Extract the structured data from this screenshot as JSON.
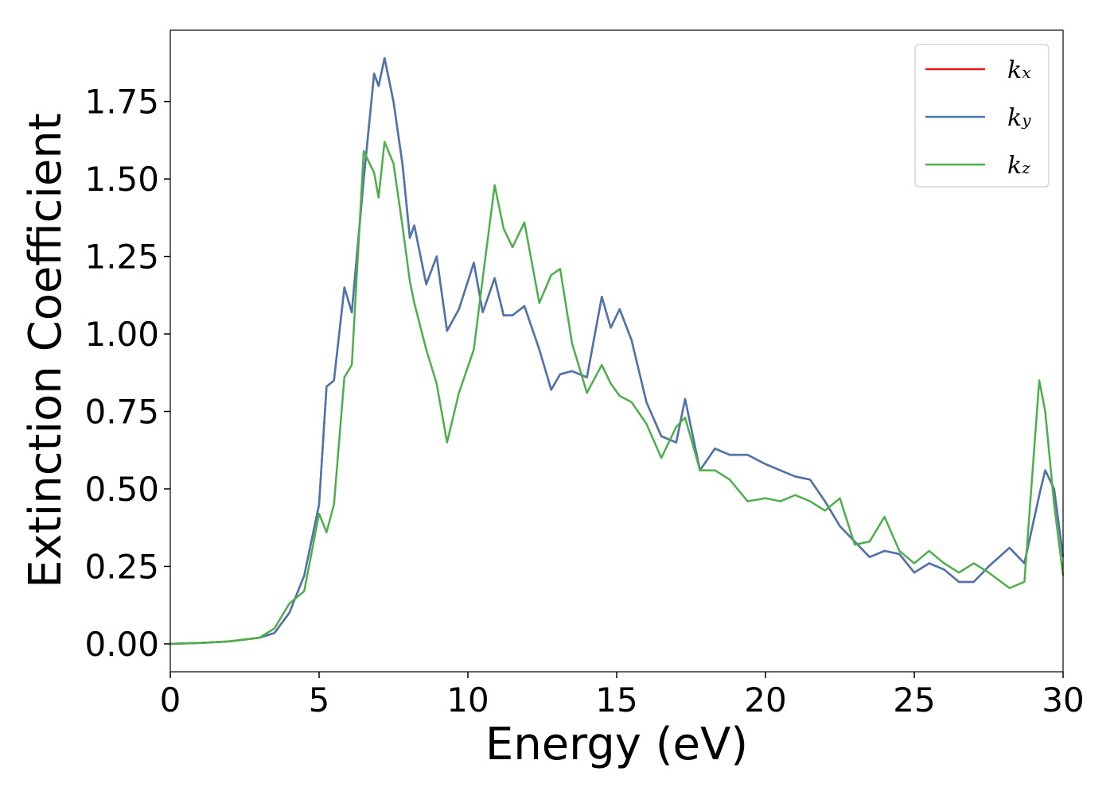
{
  "chart_data": {
    "type": "line",
    "x_label": "Energy (eV)",
    "y_label": "Extinction Coefficient",
    "x": [
      0,
      1,
      2,
      3,
      3.5,
      4,
      4.5,
      5,
      5.25,
      5.5,
      5.85,
      6.1,
      6.5,
      6.85,
      7,
      7.2,
      7.5,
      7.8,
      8.05,
      8.2,
      8.6,
      8.95,
      9.3,
      9.7,
      10.2,
      10.5,
      10.9,
      11.2,
      11.5,
      11.9,
      12.4,
      12.8,
      13.1,
      13.5,
      14,
      14.5,
      14.8,
      15.1,
      15.5,
      16,
      16.5,
      17,
      17.3,
      17.8,
      18.3,
      18.8,
      19.4,
      20,
      20.5,
      21,
      21.5,
      22,
      22.5,
      23,
      23.5,
      24,
      24.5,
      25,
      25.5,
      26,
      26.5,
      27,
      27.5,
      28.2,
      28.7,
      29.2,
      29.4,
      29.7,
      30
    ],
    "series": [
      {
        "name": "kx",
        "color": "#e41a1c",
        "values": [
          0,
          0.003,
          0.008,
          0.02,
          0.035,
          0.1,
          0.22,
          0.45,
          0.83,
          0.85,
          1.15,
          1.07,
          1.5,
          1.84,
          1.8,
          1.89,
          1.75,
          1.55,
          1.31,
          1.35,
          1.16,
          1.25,
          1.01,
          1.08,
          1.23,
          1.07,
          1.18,
          1.06,
          1.06,
          1.09,
          0.95,
          0.82,
          0.87,
          0.88,
          0.86,
          1.12,
          1.02,
          1.08,
          0.98,
          0.78,
          0.67,
          0.65,
          0.79,
          0.56,
          0.63,
          0.61,
          0.61,
          0.58,
          0.56,
          0.54,
          0.53,
          0.46,
          0.38,
          0.33,
          0.28,
          0.3,
          0.29,
          0.23,
          0.26,
          0.24,
          0.2,
          0.2,
          0.25,
          0.31,
          0.26,
          0.48,
          0.56,
          0.5,
          0.28
        ]
      },
      {
        "name": "ky",
        "color": "#4a76b0",
        "values": [
          0,
          0.003,
          0.008,
          0.02,
          0.035,
          0.1,
          0.22,
          0.45,
          0.83,
          0.85,
          1.15,
          1.07,
          1.5,
          1.84,
          1.8,
          1.89,
          1.75,
          1.55,
          1.31,
          1.35,
          1.16,
          1.25,
          1.01,
          1.08,
          1.23,
          1.07,
          1.18,
          1.06,
          1.06,
          1.09,
          0.95,
          0.82,
          0.87,
          0.88,
          0.86,
          1.12,
          1.02,
          1.08,
          0.98,
          0.78,
          0.67,
          0.65,
          0.79,
          0.56,
          0.63,
          0.61,
          0.61,
          0.58,
          0.56,
          0.54,
          0.53,
          0.46,
          0.38,
          0.33,
          0.28,
          0.3,
          0.29,
          0.23,
          0.26,
          0.24,
          0.2,
          0.2,
          0.25,
          0.31,
          0.26,
          0.48,
          0.56,
          0.5,
          0.28
        ]
      },
      {
        "name": "kz",
        "color": "#4daf4a",
        "values": [
          0,
          0.003,
          0.008,
          0.02,
          0.05,
          0.13,
          0.17,
          0.42,
          0.36,
          0.45,
          0.86,
          0.9,
          1.59,
          1.52,
          1.44,
          1.62,
          1.55,
          1.35,
          1.17,
          1.1,
          0.95,
          0.84,
          0.65,
          0.81,
          0.95,
          1.18,
          1.48,
          1.34,
          1.28,
          1.36,
          1.1,
          1.19,
          1.21,
          0.97,
          0.81,
          0.9,
          0.84,
          0.8,
          0.78,
          0.71,
          0.6,
          0.7,
          0.73,
          0.56,
          0.56,
          0.53,
          0.46,
          0.47,
          0.46,
          0.48,
          0.46,
          0.43,
          0.47,
          0.32,
          0.33,
          0.41,
          0.3,
          0.26,
          0.3,
          0.26,
          0.23,
          0.26,
          0.23,
          0.18,
          0.2,
          0.85,
          0.75,
          0.45,
          0.22
        ]
      }
    ],
    "xlim": [
      0,
      30
    ],
    "xticks": [
      0,
      5,
      10,
      15,
      20,
      25,
      30
    ],
    "ylim": [
      -0.09,
      1.98
    ],
    "yticks": [
      {
        "value": 0,
        "label": "0.00"
      },
      {
        "value": 0.25,
        "label": "0.25"
      },
      {
        "value": 0.5,
        "label": "0.50"
      },
      {
        "value": 0.75,
        "label": "0.75"
      },
      {
        "value": 1,
        "label": "1.00"
      },
      {
        "value": 1.25,
        "label": "1.25"
      },
      {
        "value": 1.5,
        "label": "1.50"
      },
      {
        "value": 1.75,
        "label": "1.75"
      }
    ],
    "legend": "upper right",
    "grid": false
  }
}
